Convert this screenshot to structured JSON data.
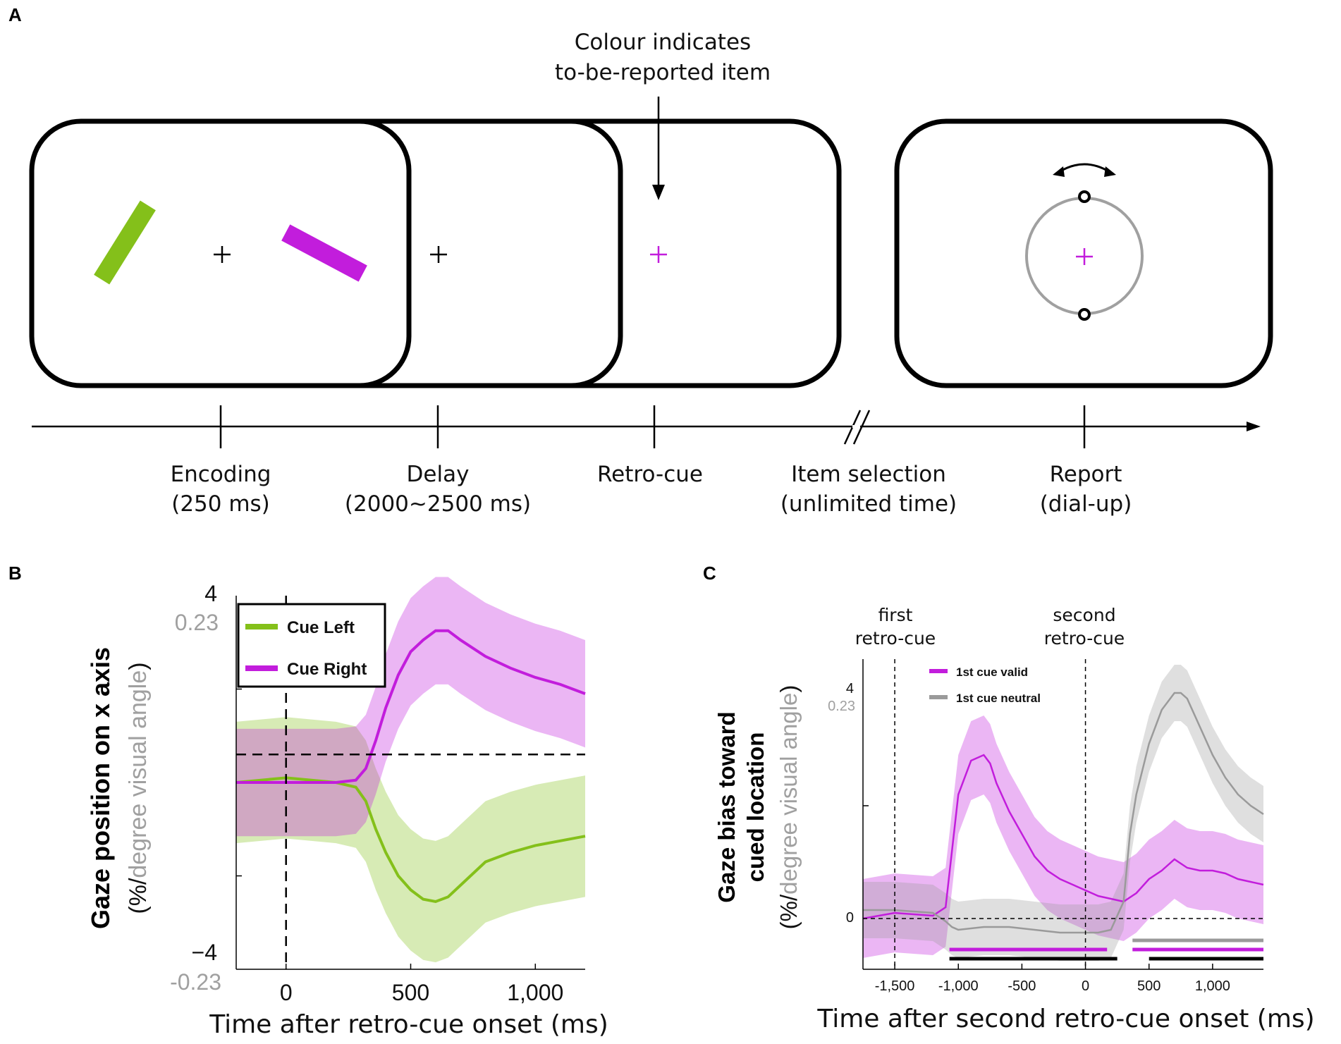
{
  "panelA": {
    "label": "A",
    "annotation": [
      "Colour indicates",
      "to-be-reported item"
    ],
    "events": [
      {
        "title": "Encoding",
        "sub": "(250 ms)"
      },
      {
        "title": "Delay",
        "sub": "(2000~2500 ms)"
      },
      {
        "title": "Retro-cue",
        "sub": ""
      },
      {
        "title": "Item selection",
        "sub": "(unlimited time)"
      },
      {
        "title": "Report",
        "sub": "(dial-up)"
      }
    ]
  },
  "panelB": {
    "label": "B",
    "ylabel_main": "Gaze position on x axis",
    "ylabel_open": "(%/",
    "ylabel_grey": "degree visual angle",
    "ylabel_close": ")",
    "xlabel": "Time after retro-cue onset (ms)",
    "ytick_top": "4",
    "ytick_top_deg": "0.23",
    "ytick_bottom": "−4",
    "ytick_bottom_deg": "-0.23",
    "legend": [
      "Cue Left",
      "Cue Right"
    ]
  },
  "panelC": {
    "label": "C",
    "ylabel_line1": "Gaze bias toward",
    "ylabel_line2": "cued location",
    "ylabel_open": "(%/",
    "ylabel_grey": "degree visual angle",
    "ylabel_close": ")",
    "xlabel": "Time after second retro-cue onset (ms)",
    "ytick_top": "4",
    "ytick_top_deg": "0.23",
    "ytick_zero": "0",
    "marker1": [
      "first",
      "retro-cue"
    ],
    "marker2": [
      "second",
      "retro-cue"
    ],
    "legend": [
      "1st cue valid",
      "1st cue neutral"
    ]
  },
  "colors": {
    "green": "#84c01a",
    "magenta": "#c21ddc",
    "grey": "#9a9a9a",
    "black": "#000000"
  },
  "chart_data": [
    {
      "type": "line",
      "title": "B",
      "xlabel": "Time after retro-cue onset (ms)",
      "ylabel": "Gaze position on x axis (%/degree visual angle)",
      "xlim": [
        -200,
        1200
      ],
      "ylim": [
        -4,
        4
      ],
      "xticks": [
        0,
        500,
        1000
      ],
      "xtick_labels": [
        "0",
        "500",
        "1,000"
      ],
      "series": [
        {
          "name": "Cue Left",
          "color": "#84c01a",
          "x": [
            -200,
            0,
            200,
            280,
            320,
            360,
            400,
            450,
            500,
            550,
            600,
            650,
            700,
            800,
            900,
            1000,
            1100,
            1200
          ],
          "y": [
            0,
            0.1,
            0,
            -0.1,
            -0.4,
            -1.0,
            -1.5,
            -2.0,
            -2.3,
            -2.5,
            -2.55,
            -2.45,
            -2.2,
            -1.7,
            -1.5,
            -1.35,
            -1.25,
            -1.15
          ],
          "err": 1.3
        },
        {
          "name": "Cue Right",
          "color": "#c21ddc",
          "x": [
            -200,
            0,
            200,
            280,
            320,
            360,
            400,
            450,
            500,
            550,
            600,
            650,
            700,
            800,
            900,
            1000,
            1100,
            1200
          ],
          "y": [
            0,
            0,
            0,
            0.05,
            0.3,
            0.9,
            1.6,
            2.3,
            2.8,
            3.05,
            3.25,
            3.25,
            3.05,
            2.7,
            2.45,
            2.25,
            2.1,
            1.9
          ],
          "err": 1.15
        }
      ],
      "hlines": [
        0.6
      ],
      "vlines": [
        0
      ]
    },
    {
      "type": "line",
      "title": "C",
      "xlabel": "Time after second retro-cue onset (ms)",
      "ylabel": "Gaze bias toward cued location (%/degree visual angle)",
      "xlim": [
        -1750,
        1400
      ],
      "ylim": [
        -0.9,
        4.6
      ],
      "xticks": [
        -1500,
        -1000,
        -500,
        0,
        500,
        1000
      ],
      "xtick_labels": [
        "-1,500",
        "-1,000",
        "-500",
        "0",
        "500",
        "1,000"
      ],
      "series": [
        {
          "name": "1st cue valid",
          "color": "#c21ddc",
          "x": [
            -1750,
            -1500,
            -1200,
            -1100,
            -1050,
            -1000,
            -900,
            -800,
            -750,
            -700,
            -600,
            -500,
            -400,
            -300,
            -200,
            -100,
            0,
            100,
            200,
            300,
            400,
            500,
            600,
            700,
            800,
            900,
            1000,
            1100,
            1200,
            1300,
            1400
          ],
          "y": [
            0,
            0.1,
            0.05,
            0.2,
            1.2,
            2.2,
            2.8,
            2.9,
            2.75,
            2.4,
            1.9,
            1.5,
            1.1,
            0.85,
            0.7,
            0.6,
            0.5,
            0.4,
            0.35,
            0.3,
            0.45,
            0.7,
            0.85,
            1.05,
            0.9,
            0.85,
            0.85,
            0.8,
            0.7,
            0.65,
            0.6
          ],
          "err": 0.7
        },
        {
          "name": "1st cue neutral",
          "color": "#9a9a9a",
          "x": [
            -1750,
            -1500,
            -1200,
            -1100,
            -1050,
            -1000,
            -800,
            -600,
            -400,
            -200,
            0,
            100,
            200,
            300,
            350,
            400,
            500,
            600,
            700,
            750,
            800,
            900,
            1000,
            1100,
            1200,
            1300,
            1400
          ],
          "y": [
            0.15,
            0.15,
            0.1,
            -0.05,
            -0.15,
            -0.2,
            -0.15,
            -0.15,
            -0.2,
            -0.25,
            -0.25,
            -0.25,
            -0.2,
            0.3,
            1.5,
            2.2,
            3.1,
            3.7,
            4.0,
            4.0,
            3.9,
            3.4,
            2.9,
            2.5,
            2.2,
            2.0,
            1.85
          ],
          "err": 0.5
        }
      ],
      "significance_bars": [
        {
          "color": "#c21ddc",
          "from": -1070,
          "to": 170
        },
        {
          "color": "#000000",
          "from": -1070,
          "to": 250
        },
        {
          "color": "#9a9a9a",
          "from": 370,
          "to": 1400
        },
        {
          "color": "#c21ddc",
          "from": 370,
          "to": 1400
        },
        {
          "color": "#000000",
          "from": 500,
          "to": 1400
        }
      ],
      "hlines": [
        0
      ],
      "vlines": [
        -1500,
        0
      ]
    }
  ]
}
